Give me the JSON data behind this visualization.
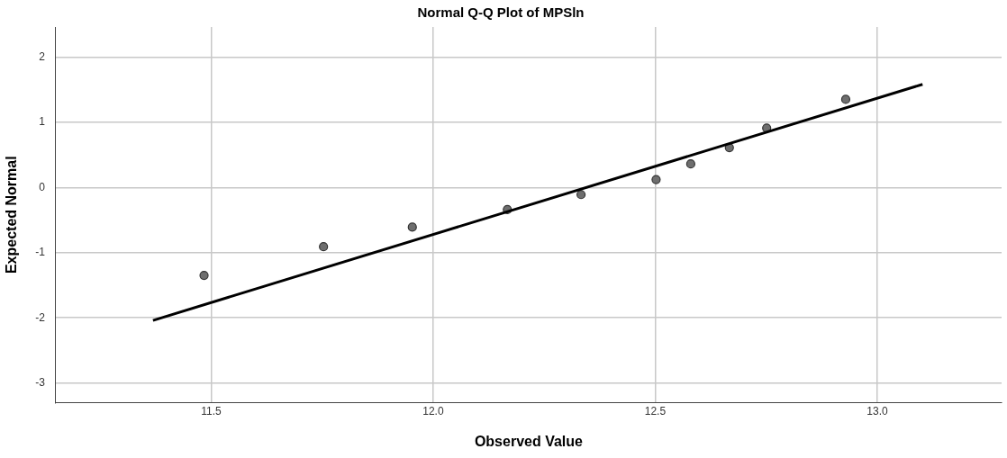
{
  "chart_data": {
    "type": "scatter",
    "title": "Normal Q-Q Plot of MPSln",
    "xlabel": "Observed Value",
    "ylabel": "Expected Normal",
    "xlim": [
      11.15,
      13.28
    ],
    "ylim": [
      -3.3,
      2.46
    ],
    "xticks": [
      11.5,
      {
        "value": 12,
        "label": "12.0"
      },
      12.5,
      {
        "value": 13,
        "label": "13.0"
      }
    ],
    "yticks": [
      -3,
      -2,
      -1,
      0,
      1,
      2
    ],
    "grid": true,
    "series": [
      {
        "marker": "circle",
        "color": "#6e6e6e",
        "x": [
          11.484,
          11.753,
          11.953,
          12.167,
          12.333,
          12.502,
          12.58,
          12.667,
          12.751,
          12.929
        ],
        "values": [
          -1.35,
          -0.91,
          -0.61,
          -0.34,
          -0.11,
          0.12,
          0.36,
          0.61,
          0.91,
          1.35
        ]
      },
      {
        "type": "line",
        "marker": "none",
        "color": "#000000",
        "x": [
          11.369,
          13.102
        ],
        "values": [
          -2.04,
          1.58
        ]
      }
    ]
  }
}
